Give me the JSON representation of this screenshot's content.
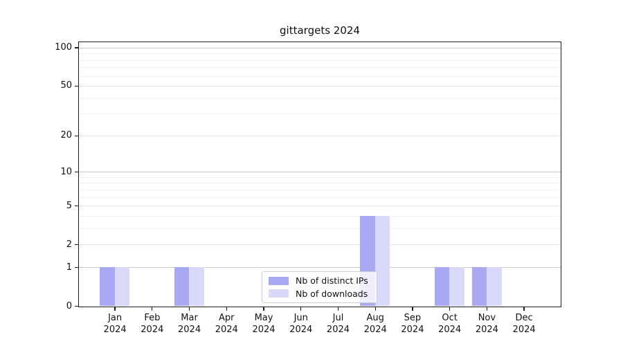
{
  "chart_data": {
    "type": "bar",
    "title": "gittargets 2024",
    "categories": [
      "Jan",
      "Feb",
      "Mar",
      "Apr",
      "May",
      "Jun",
      "Jul",
      "Aug",
      "Sep",
      "Oct",
      "Nov",
      "Dec"
    ],
    "x_year_label": "2024",
    "series": [
      {
        "name": "Nb of distinct IPs",
        "color": "#a9a9f3",
        "values": [
          1,
          0,
          1,
          0,
          0,
          0,
          0,
          4,
          0,
          1,
          1,
          0
        ]
      },
      {
        "name": "Nb of downloads",
        "color": "#d9d9f9",
        "values": [
          1,
          0,
          1,
          0,
          0,
          0,
          0,
          4,
          0,
          1,
          1,
          0
        ]
      }
    ],
    "y_axis": {
      "scale": "log1p",
      "major_ticks": [
        0,
        1,
        2,
        5,
        10,
        20,
        50,
        100
      ],
      "decade_ticks": [
        1,
        10,
        100
      ],
      "minor_ticks": [
        3,
        4,
        6,
        7,
        8,
        9,
        30,
        40,
        60,
        70,
        80,
        90
      ],
      "range": [
        0,
        112
      ]
    },
    "legend_position": "bottom-center",
    "grid": true
  },
  "colors": {
    "background": "#ffffff",
    "spine": "#1a1a1a",
    "decade_grid": "#c6c6c6",
    "major_grid": "#e5e5e5",
    "minor_grid": "#f0f0f0",
    "text": "#111111"
  }
}
